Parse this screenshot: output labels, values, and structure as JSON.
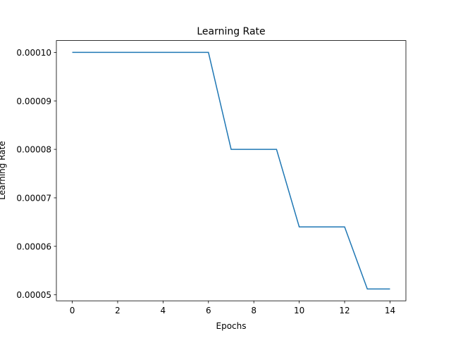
{
  "chart_data": {
    "type": "line",
    "title": "Learning Rate",
    "xlabel": "Epochs",
    "ylabel": "Learning Rate",
    "x": [
      0,
      1,
      2,
      3,
      4,
      5,
      6,
      7,
      8,
      9,
      10,
      11,
      12,
      13,
      14
    ],
    "series": [
      {
        "name": "Learning Rate",
        "color": "#1f77b4",
        "values": [
          0.0001,
          0.0001,
          0.0001,
          0.0001,
          0.0001,
          0.0001,
          0.0001,
          8e-05,
          8e-05,
          8e-05,
          6.4e-05,
          6.4e-05,
          6.4e-05,
          5.12e-05,
          5.12e-05
        ]
      }
    ],
    "xlim": [
      -0.7,
      14.7
    ],
    "xticks": [
      0,
      2,
      4,
      6,
      8,
      10,
      12,
      14
    ],
    "ylim": [
      4.876e-05,
      0.00010244
    ],
    "yticks": [
      {
        "value": 5e-05,
        "label": "0.00005"
      },
      {
        "value": 6e-05,
        "label": "0.00006"
      },
      {
        "value": 7e-05,
        "label": "0.00007"
      },
      {
        "value": 8e-05,
        "label": "0.00008"
      },
      {
        "value": 9e-05,
        "label": "0.00009"
      },
      {
        "value": 0.0001,
        "label": "0.00010"
      }
    ]
  }
}
